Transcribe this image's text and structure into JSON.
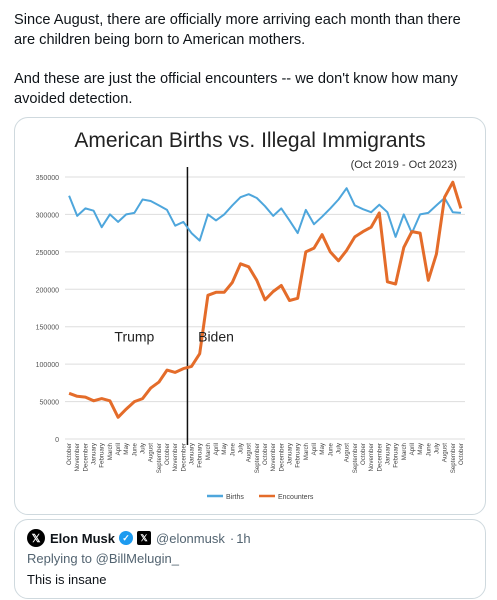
{
  "post": {
    "paragraph1": "Since August, there are officially more arriving each month than there are children being born to American mothers.",
    "paragraph2": "And these are just the official encounters -- we don't know how many avoided detection."
  },
  "quoted_post": {
    "name": "Elon Musk",
    "handle": "@elonmusk",
    "time": "1h",
    "reply_to": "Replying to @BillMelugin_",
    "text": "This is insane",
    "avatar_icon": "x-logo-icon"
  },
  "chart_data": {
    "type": "line",
    "title": "American Births vs. Illegal Immigrants",
    "subtitle": "(Oct 2019 - Oct 2023)",
    "xlabel": "",
    "ylabel": "",
    "ylim": [
      0,
      350000
    ],
    "yticks": [
      "0",
      "50000",
      "100000",
      "150000",
      "200000",
      "250000",
      "300000",
      "350000"
    ],
    "grid": true,
    "legend": "bottom",
    "x": [
      "October",
      "November",
      "December",
      "January",
      "February",
      "March",
      "April",
      "May",
      "June",
      "July",
      "August",
      "September",
      "October",
      "November",
      "December",
      "January",
      "February",
      "March",
      "April",
      "May",
      "June",
      "July",
      "August",
      "September",
      "October",
      "November",
      "December",
      "January",
      "February",
      "March",
      "April",
      "May",
      "June",
      "July",
      "August",
      "September",
      "October",
      "November",
      "December",
      "January",
      "February",
      "March",
      "April",
      "May",
      "June",
      "July",
      "August",
      "September",
      "October"
    ],
    "series": [
      {
        "name": "Births",
        "color": "#4ea6dc",
        "values": [
          325000,
          298000,
          308000,
          305000,
          283000,
          300000,
          290000,
          300000,
          302000,
          320000,
          318000,
          312000,
          306000,
          285000,
          290000,
          275000,
          265000,
          300000,
          292000,
          300000,
          312000,
          323000,
          327000,
          322000,
          311000,
          298000,
          308000,
          292000,
          275000,
          306000,
          287000,
          297000,
          308000,
          320000,
          335000,
          312000,
          307000,
          303000,
          313000,
          303000,
          270000,
          300000,
          275000,
          300000,
          302000,
          312000,
          322000,
          303000,
          302000
        ]
      },
      {
        "name": "Encounters",
        "color": "#e46c2a",
        "values": [
          61000,
          57000,
          56000,
          51000,
          54000,
          51000,
          29000,
          40000,
          50000,
          54000,
          68000,
          76000,
          92000,
          89000,
          94000,
          97000,
          114000,
          192000,
          196000,
          196000,
          209000,
          234000,
          230000,
          212000,
          186000,
          197000,
          205000,
          185000,
          188000,
          250000,
          255000,
          273000,
          250000,
          238000,
          252000,
          270000,
          277000,
          283000,
          302000,
          210000,
          207000,
          256000,
          277000,
          275000,
          212000,
          247000,
          323000,
          343000,
          308000
        ]
      }
    ],
    "annotations": [
      {
        "text": "Trump",
        "x_index": 8
      },
      {
        "text": "Biden",
        "x_index": 18
      }
    ],
    "divider_after": "December"
  }
}
